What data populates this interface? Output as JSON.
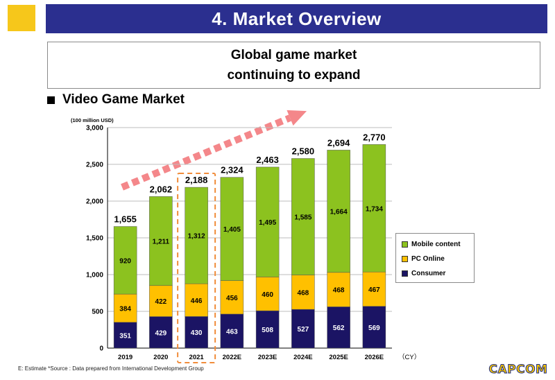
{
  "header": {
    "title": "4. Market Overview"
  },
  "message": {
    "line1": "Global game market",
    "line2": "continuing to expand"
  },
  "section": {
    "title": "Video Game Market"
  },
  "chart_data": {
    "type": "bar",
    "stacked": true,
    "unit_label": "(100 million USD)",
    "x_unit_label": "（CY）",
    "categories": [
      "2019",
      "2020",
      "2021",
      "2022E",
      "2023E",
      "2024E",
      "2025E",
      "2026E"
    ],
    "series": [
      {
        "name": "Consumer",
        "color": "#1b1464",
        "values": [
          351,
          429,
          430,
          463,
          508,
          527,
          562,
          569
        ]
      },
      {
        "name": "PC Online",
        "color": "#ffc000",
        "values": [
          384,
          422,
          446,
          456,
          460,
          468,
          468,
          467
        ]
      },
      {
        "name": "Mobile content",
        "color": "#8cc21f",
        "values": [
          920,
          1211,
          1312,
          1405,
          1495,
          1585,
          1664,
          1734
        ]
      }
    ],
    "totals": [
      1655,
      2062,
      2188,
      2324,
      2463,
      2580,
      2694,
      2770
    ],
    "ylim": [
      0,
      3000
    ],
    "yticks": [
      0,
      500,
      1000,
      1500,
      2000,
      2500,
      3000
    ],
    "grid": true,
    "legend_position": "right",
    "highlight_category": "2021",
    "value_label_color": "#000000",
    "consumer_label_color": "#ffffff"
  },
  "legend": [
    {
      "label": "Mobile content",
      "color": "#8cc21f"
    },
    {
      "label": "PC Online",
      "color": "#ffc000"
    },
    {
      "label": "Consumer",
      "color": "#1b1464"
    }
  ],
  "footnote": "E: Estimate *Source : Data prepared from International Development Group",
  "logo": {
    "text": "CAPCOM"
  }
}
